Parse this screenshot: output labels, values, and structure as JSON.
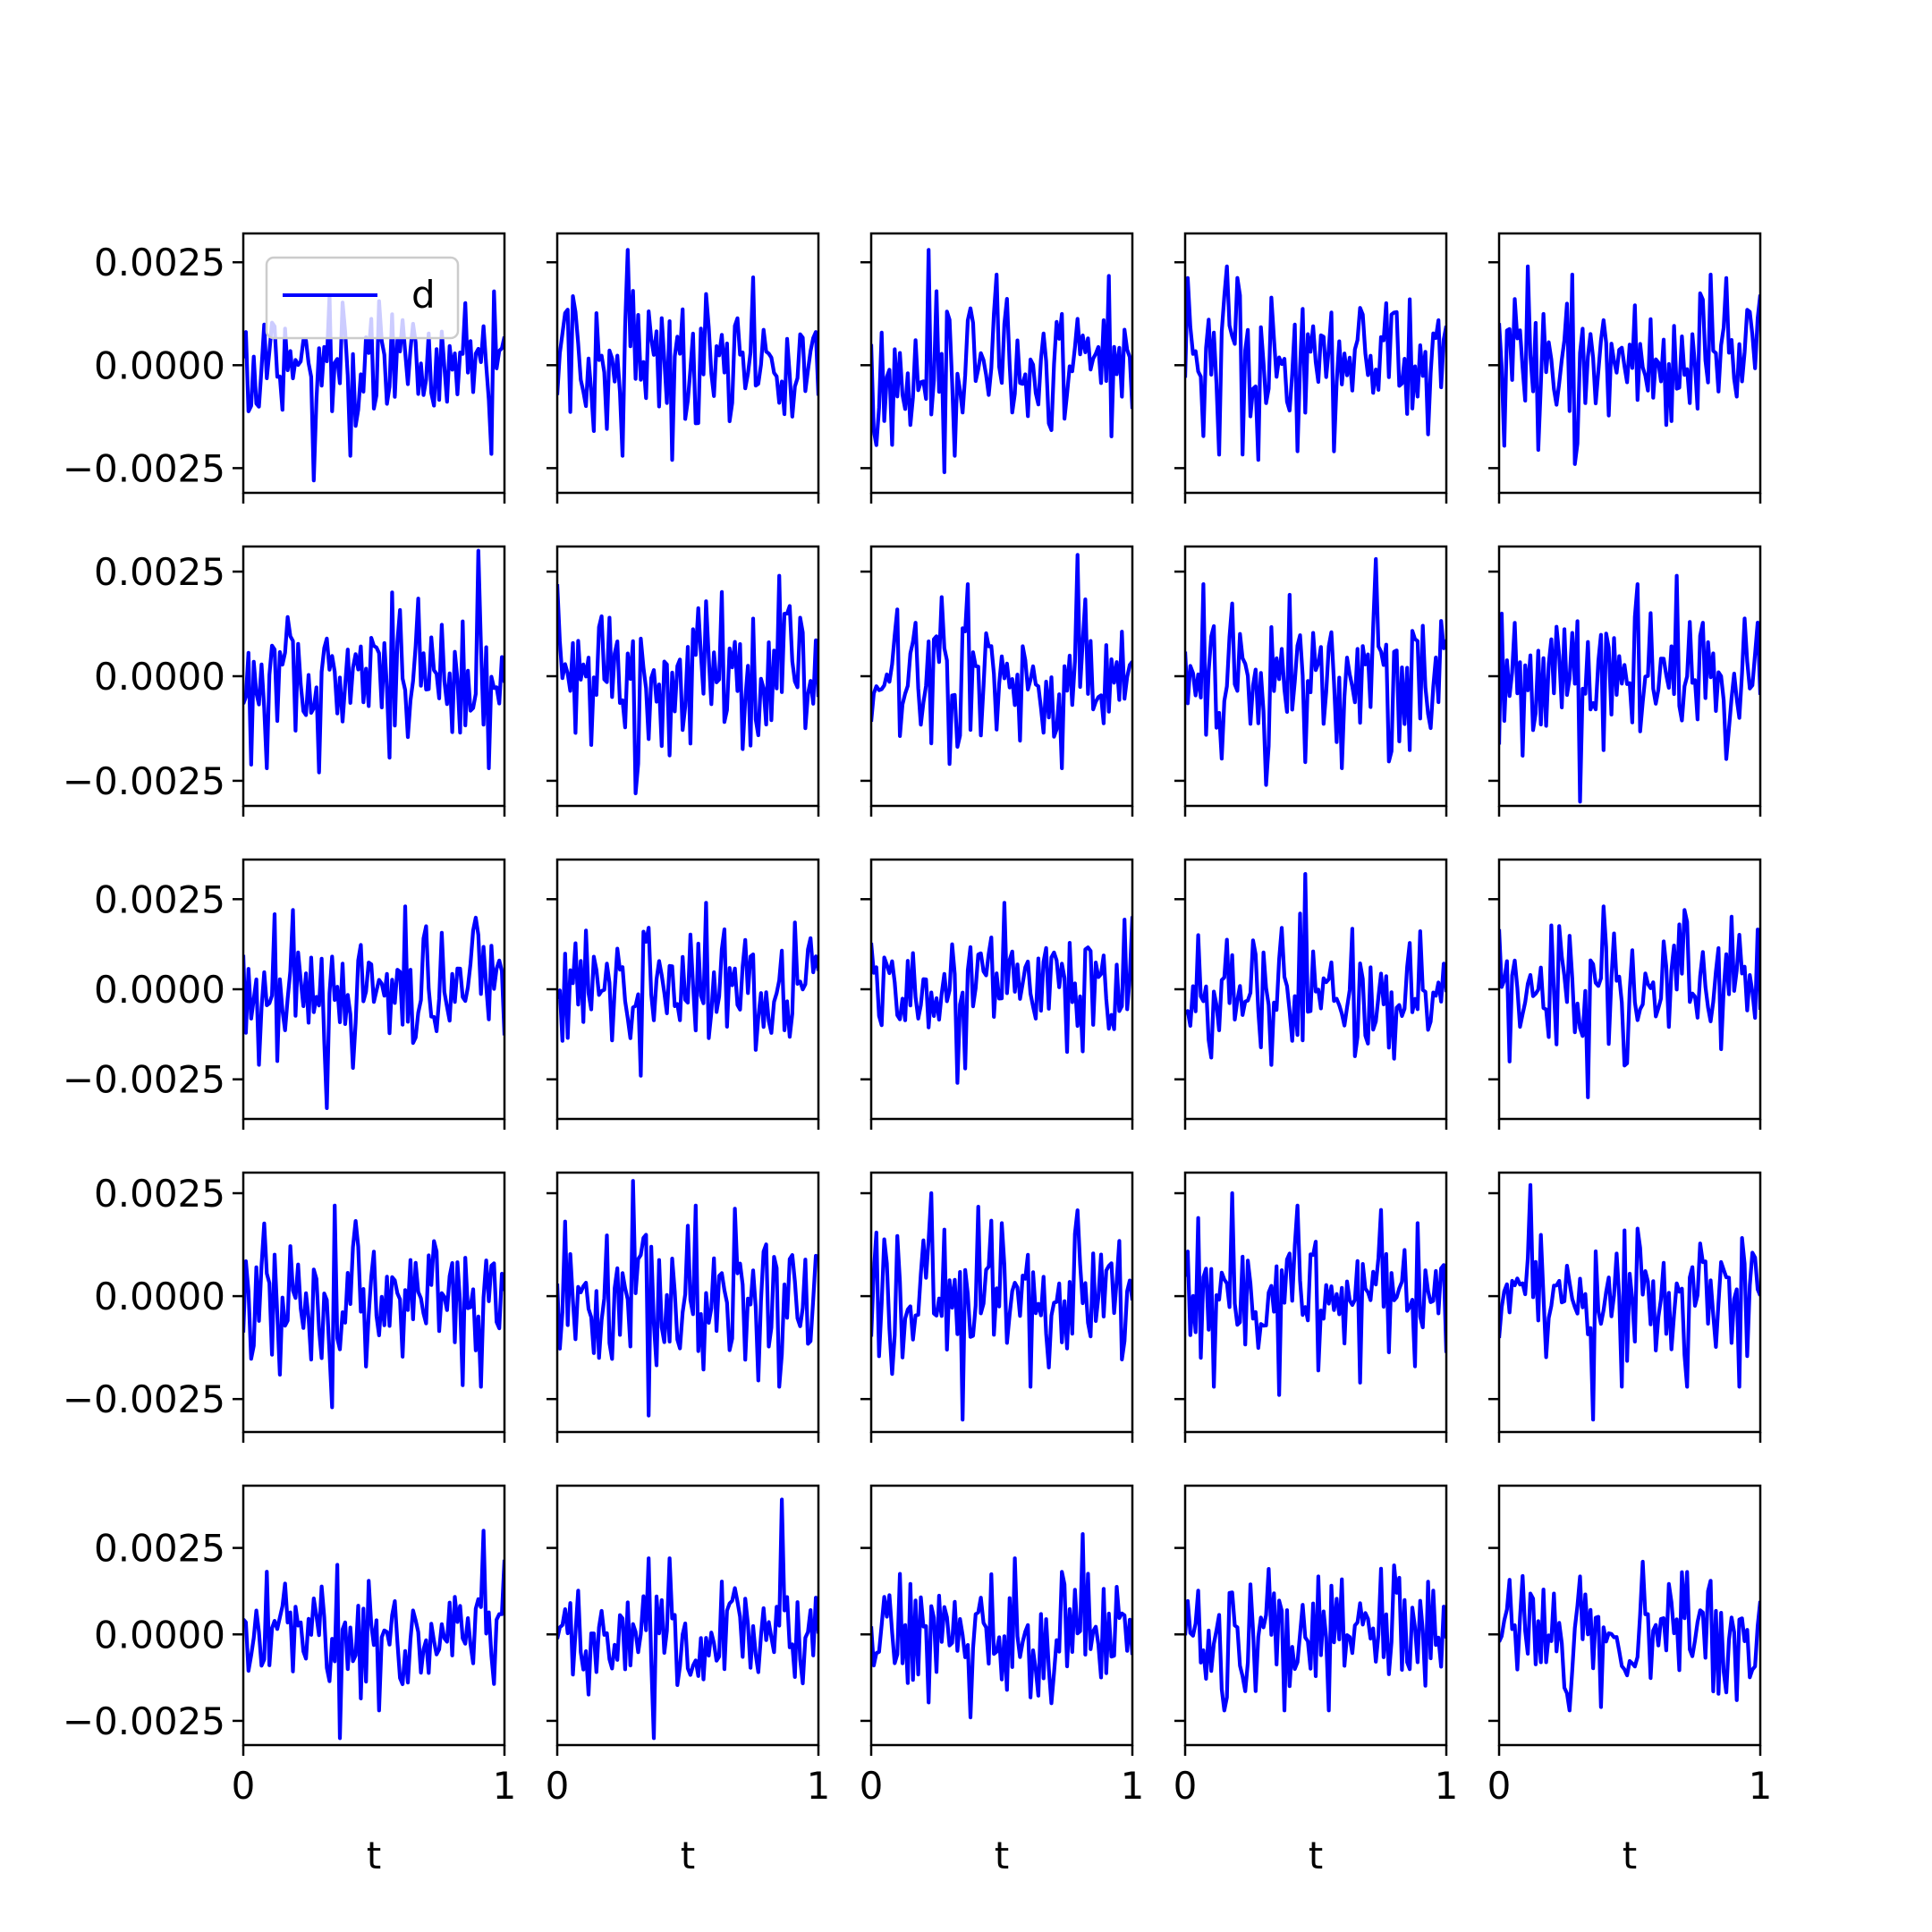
{
  "chart_data": {
    "type": "line",
    "layout": "5x5 grid of subplots",
    "line_color": "#0000ff",
    "legend": {
      "label": "d",
      "placement": "upper-left",
      "subplot": 0
    },
    "xlabel": "t",
    "xlim": [
      0,
      1
    ],
    "x_ticks": [
      "0",
      "1"
    ],
    "y_ticks": [
      "0.0025",
      "0.0000",
      "−0.0025"
    ],
    "y_tick_values": [
      0.0025,
      0.0,
      -0.0025
    ],
    "row_ylims": [
      [
        -0.0031,
        0.0032
      ],
      [
        -0.0031,
        0.0031
      ],
      [
        -0.0036,
        0.0036
      ],
      [
        -0.0033,
        0.003
      ],
      [
        -0.0032,
        0.0043
      ]
    ],
    "points_per_series": 101,
    "series": [
      {
        "name": "row1-col1",
        "extremes": [
          0.0017,
          -0.0028
        ]
      },
      {
        "name": "row1-col2",
        "extremes": [
          0.0028,
          -0.0023
        ]
      },
      {
        "name": "row1-col3",
        "extremes": [
          0.0028,
          -0.0026
        ]
      },
      {
        "name": "row1-col4",
        "extremes": [
          0.0024,
          -0.0023
        ]
      },
      {
        "name": "row1-col5",
        "extremes": [
          0.0024,
          -0.0024
        ]
      },
      {
        "name": "row2-col1",
        "extremes": [
          0.003,
          -0.0023
        ]
      },
      {
        "name": "row2-col2",
        "extremes": [
          0.0024,
          -0.0028
        ]
      },
      {
        "name": "row2-col3",
        "extremes": [
          0.0029,
          -0.0021
        ]
      },
      {
        "name": "row2-col4",
        "extremes": [
          0.0028,
          -0.0026
        ]
      },
      {
        "name": "row2-col5",
        "extremes": [
          0.0024,
          -0.003
        ]
      },
      {
        "name": "row3-col1",
        "extremes": [
          0.0023,
          -0.0033
        ]
      },
      {
        "name": "row3-col2",
        "extremes": [
          0.0024,
          -0.0024
        ]
      },
      {
        "name": "row3-col3",
        "extremes": [
          0.0024,
          -0.0026
        ]
      },
      {
        "name": "row3-col4",
        "extremes": [
          0.0032,
          -0.0021
        ]
      },
      {
        "name": "row3-col5",
        "extremes": [
          0.0023,
          -0.003
        ]
      },
      {
        "name": "row4-col1",
        "extremes": [
          0.0022,
          -0.0027
        ]
      },
      {
        "name": "row4-col2",
        "extremes": [
          0.0028,
          -0.0029
        ]
      },
      {
        "name": "row4-col3",
        "extremes": [
          0.0025,
          -0.003
        ]
      },
      {
        "name": "row4-col4",
        "extremes": [
          0.0025,
          -0.0024
        ]
      },
      {
        "name": "row4-col5",
        "extremes": [
          0.0027,
          -0.003
        ]
      },
      {
        "name": "row5-col1",
        "extremes": [
          0.003,
          -0.003
        ]
      },
      {
        "name": "row5-col2",
        "extremes": [
          0.0039,
          -0.003
        ]
      },
      {
        "name": "row5-col3",
        "extremes": [
          0.0029,
          -0.0024
        ]
      },
      {
        "name": "row5-col4",
        "extremes": [
          0.0019,
          -0.0022
        ]
      },
      {
        "name": "row5-col5",
        "extremes": [
          0.0018,
          -0.0021
        ]
      }
    ]
  }
}
